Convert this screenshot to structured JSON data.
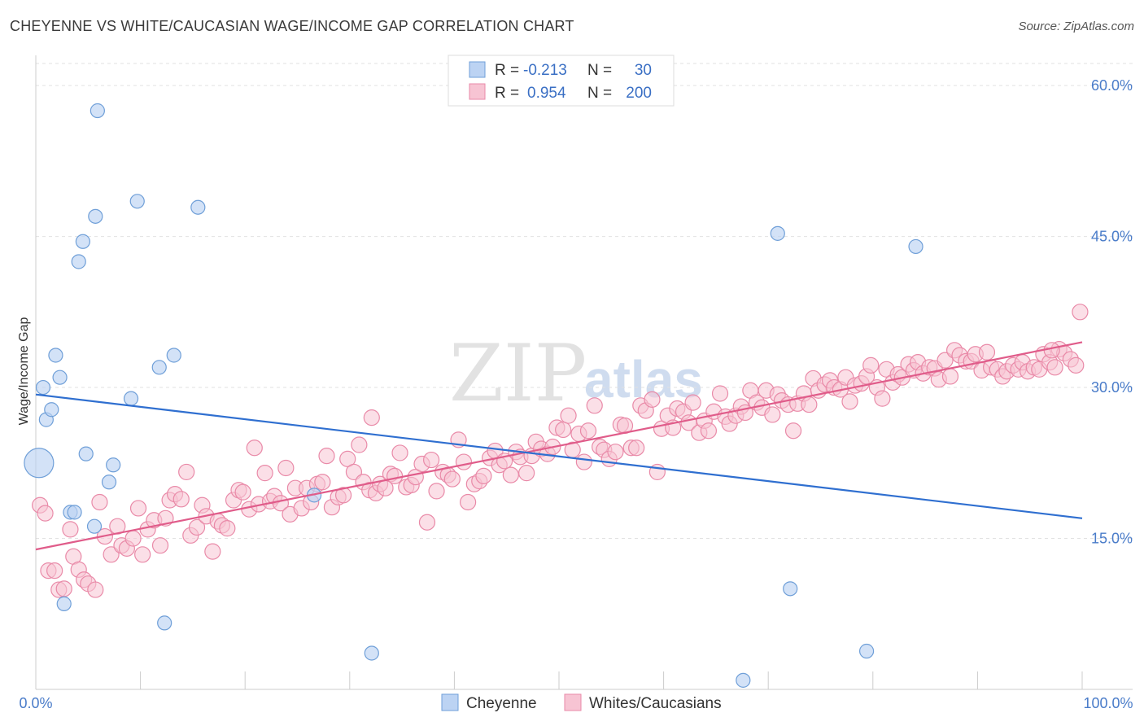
{
  "header": {
    "title": "CHEYENNE VS WHITE/CAUCASIAN WAGE/INCOME GAP CORRELATION CHART",
    "source": "Source: ZipAtlas.com"
  },
  "watermark": {
    "zip": "ZIP",
    "atlas": "atlas"
  },
  "colors": {
    "cheyenne_fill": "#bcd3f3",
    "cheyenne_stroke": "#6f9fd8",
    "cheyenne_line": "#2f6fd0",
    "white_fill": "#f7c4d3",
    "white_stroke": "#e98aa8",
    "white_line": "#e05c8a",
    "tick_text": "#4a7cc9"
  },
  "legend": {
    "rows": [
      {
        "r_label": "R =",
        "r_value": "-0.213",
        "n_label": "N =",
        "n_value": "30"
      },
      {
        "r_label": "R =",
        "r_value": "0.954",
        "n_label": "N =",
        "n_value": "200"
      }
    ]
  },
  "bottom_legend": [
    "Cheyenne",
    "Whites/Caucasians"
  ],
  "chart_data": {
    "type": "scatter",
    "title": "CHEYENNE VS WHITE/CAUCASIAN WAGE/INCOME GAP CORRELATION CHART",
    "xlabel": "",
    "ylabel": "Wage/Income Gap",
    "xlim": [
      0,
      100
    ],
    "ylim": [
      0,
      63
    ],
    "x_tick_labels": [
      "0.0%",
      "100.0%"
    ],
    "y_ticks": [
      15,
      30,
      45,
      60
    ],
    "y_tick_labels": [
      "15.0%",
      "30.0%",
      "45.0%",
      "60.0%"
    ],
    "series": [
      {
        "name": "Cheyenne",
        "r": -0.213,
        "n": 30,
        "trend": {
          "x": [
            0,
            100
          ],
          "y": [
            29.3,
            17.0
          ]
        },
        "points": [
          [
            0.3,
            22.5,
            1
          ],
          [
            0.7,
            30.0,
            0
          ],
          [
            1.0,
            26.8,
            0
          ],
          [
            1.5,
            27.8,
            0
          ],
          [
            1.9,
            33.2,
            0
          ],
          [
            2.3,
            31.0,
            0
          ],
          [
            2.7,
            8.5,
            0
          ],
          [
            3.3,
            17.6,
            0
          ],
          [
            3.7,
            17.6,
            0
          ],
          [
            4.1,
            42.5,
            0
          ],
          [
            4.5,
            44.5,
            0
          ],
          [
            4.8,
            23.4,
            0
          ],
          [
            5.6,
            16.2,
            0
          ],
          [
            5.9,
            57.5,
            0
          ],
          [
            5.7,
            47.0,
            0
          ],
          [
            7.0,
            20.6,
            0
          ],
          [
            7.4,
            22.3,
            0
          ],
          [
            9.1,
            28.9,
            0
          ],
          [
            9.7,
            48.5,
            0
          ],
          [
            11.8,
            32.0,
            0
          ],
          [
            12.3,
            6.6,
            0
          ],
          [
            13.2,
            33.2,
            0
          ],
          [
            15.5,
            47.9,
            0
          ],
          [
            26.6,
            19.3,
            0
          ],
          [
            32.1,
            3.6,
            0
          ],
          [
            70.9,
            45.3,
            0
          ],
          [
            72.1,
            10.0,
            0
          ],
          [
            79.4,
            3.8,
            0
          ],
          [
            84.1,
            44.0,
            0
          ],
          [
            67.6,
            0.9,
            0
          ]
        ]
      },
      {
        "name": "Whites/Caucasians",
        "r": 0.954,
        "n": 200,
        "trend": {
          "x": [
            0,
            100
          ],
          "y": [
            13.9,
            34.5
          ]
        },
        "points": [
          [
            0.4,
            18.3
          ],
          [
            0.9,
            17.5
          ],
          [
            1.2,
            11.8
          ],
          [
            1.8,
            11.8
          ],
          [
            2.2,
            9.9
          ],
          [
            2.7,
            10.0
          ],
          [
            3.3,
            15.9
          ],
          [
            3.6,
            13.2
          ],
          [
            4.1,
            11.9
          ],
          [
            4.6,
            10.9
          ],
          [
            5.0,
            10.5
          ],
          [
            5.7,
            9.9
          ],
          [
            6.1,
            18.6
          ],
          [
            6.6,
            15.2
          ],
          [
            7.2,
            13.4
          ],
          [
            7.8,
            16.2
          ],
          [
            8.2,
            14.3
          ],
          [
            8.7,
            14.0
          ],
          [
            9.3,
            15.0
          ],
          [
            9.8,
            18.0
          ],
          [
            10.2,
            13.4
          ],
          [
            10.7,
            15.9
          ],
          [
            11.3,
            16.8
          ],
          [
            11.9,
            14.3
          ],
          [
            12.4,
            17.0
          ],
          [
            12.8,
            18.8
          ],
          [
            13.3,
            19.4
          ],
          [
            13.9,
            18.9
          ],
          [
            14.4,
            21.6
          ],
          [
            14.8,
            15.3
          ],
          [
            15.4,
            16.1
          ],
          [
            15.9,
            18.3
          ],
          [
            16.3,
            17.2
          ],
          [
            16.9,
            13.7
          ],
          [
            17.4,
            16.7
          ],
          [
            17.8,
            16.3
          ],
          [
            18.3,
            16.0
          ],
          [
            18.9,
            18.8
          ],
          [
            19.4,
            19.8
          ],
          [
            19.8,
            19.6
          ],
          [
            20.4,
            17.9
          ],
          [
            20.9,
            24.0
          ],
          [
            21.3,
            18.4
          ],
          [
            21.9,
            21.5
          ],
          [
            22.4,
            18.7
          ],
          [
            22.8,
            19.2
          ],
          [
            23.4,
            18.5
          ],
          [
            23.9,
            22.0
          ],
          [
            24.3,
            17.4
          ],
          [
            24.8,
            20.0
          ],
          [
            25.4,
            18.0
          ],
          [
            25.9,
            20.0
          ],
          [
            26.3,
            18.6
          ],
          [
            26.9,
            20.4
          ],
          [
            27.4,
            20.6
          ],
          [
            27.8,
            23.2
          ],
          [
            28.3,
            18.1
          ],
          [
            28.9,
            19.1
          ],
          [
            29.4,
            19.3
          ],
          [
            29.8,
            22.9
          ],
          [
            30.4,
            21.6
          ],
          [
            30.9,
            24.3
          ],
          [
            31.3,
            20.6
          ],
          [
            31.9,
            19.8
          ],
          [
            32.1,
            27.0
          ],
          [
            32.5,
            19.5
          ],
          [
            32.9,
            20.4
          ],
          [
            33.4,
            20.0
          ],
          [
            33.9,
            21.4
          ],
          [
            34.3,
            21.2
          ],
          [
            34.8,
            23.5
          ],
          [
            35.4,
            20.1
          ],
          [
            35.9,
            20.3
          ],
          [
            36.3,
            21.1
          ],
          [
            36.9,
            22.4
          ],
          [
            37.4,
            16.6
          ],
          [
            37.8,
            22.8
          ],
          [
            38.3,
            19.7
          ],
          [
            38.9,
            21.6
          ],
          [
            39.4,
            21.3
          ],
          [
            39.8,
            20.9
          ],
          [
            40.4,
            24.8
          ],
          [
            40.9,
            22.6
          ],
          [
            41.3,
            18.6
          ],
          [
            41.9,
            20.4
          ],
          [
            42.4,
            20.7
          ],
          [
            42.8,
            21.2
          ],
          [
            43.4,
            23.0
          ],
          [
            43.9,
            23.7
          ],
          [
            44.3,
            22.3
          ],
          [
            44.8,
            22.7
          ],
          [
            45.4,
            21.3
          ],
          [
            45.9,
            23.6
          ],
          [
            46.3,
            23.1
          ],
          [
            46.9,
            21.5
          ],
          [
            47.4,
            23.2
          ],
          [
            47.8,
            24.6
          ],
          [
            48.3,
            23.9
          ],
          [
            48.9,
            23.4
          ],
          [
            49.4,
            24.1
          ],
          [
            49.8,
            26.0
          ],
          [
            50.4,
            25.8
          ],
          [
            50.9,
            27.2
          ],
          [
            51.3,
            23.8
          ],
          [
            51.9,
            25.4
          ],
          [
            52.4,
            22.6
          ],
          [
            52.8,
            25.7
          ],
          [
            53.4,
            28.2
          ],
          [
            53.9,
            24.1
          ],
          [
            54.3,
            23.8
          ],
          [
            54.8,
            22.9
          ],
          [
            55.4,
            23.6
          ],
          [
            55.9,
            26.3
          ],
          [
            56.3,
            26.2
          ],
          [
            56.9,
            24.0
          ],
          [
            57.4,
            24.0
          ],
          [
            57.8,
            28.2
          ],
          [
            58.3,
            27.7
          ],
          [
            58.9,
            28.8
          ],
          [
            59.4,
            21.6
          ],
          [
            59.8,
            25.9
          ],
          [
            60.4,
            27.2
          ],
          [
            60.9,
            26.0
          ],
          [
            61.3,
            27.9
          ],
          [
            61.9,
            27.6
          ],
          [
            62.4,
            26.5
          ],
          [
            62.8,
            28.5
          ],
          [
            63.4,
            25.5
          ],
          [
            63.9,
            26.7
          ],
          [
            64.3,
            25.7
          ],
          [
            64.8,
            27.6
          ],
          [
            65.4,
            29.4
          ],
          [
            65.9,
            27.1
          ],
          [
            66.3,
            26.4
          ],
          [
            66.9,
            27.2
          ],
          [
            67.4,
            28.1
          ],
          [
            67.8,
            27.5
          ],
          [
            68.3,
            29.7
          ],
          [
            68.9,
            28.5
          ],
          [
            69.4,
            28.0
          ],
          [
            69.8,
            29.7
          ],
          [
            70.4,
            27.3
          ],
          [
            70.9,
            29.3
          ],
          [
            71.3,
            28.7
          ],
          [
            71.9,
            28.3
          ],
          [
            72.4,
            25.7
          ],
          [
            72.8,
            28.4
          ],
          [
            73.4,
            29.4
          ],
          [
            73.9,
            28.3
          ],
          [
            74.3,
            30.9
          ],
          [
            74.8,
            29.7
          ],
          [
            75.4,
            30.3
          ],
          [
            75.9,
            30.7
          ],
          [
            76.3,
            30.0
          ],
          [
            76.9,
            29.8
          ],
          [
            77.4,
            31.0
          ],
          [
            77.8,
            28.6
          ],
          [
            78.3,
            30.2
          ],
          [
            78.9,
            30.4
          ],
          [
            79.4,
            31.1
          ],
          [
            79.8,
            32.2
          ],
          [
            80.4,
            30.0
          ],
          [
            80.9,
            28.9
          ],
          [
            81.3,
            31.8
          ],
          [
            81.9,
            30.5
          ],
          [
            82.4,
            31.3
          ],
          [
            82.8,
            31.0
          ],
          [
            83.4,
            32.3
          ],
          [
            83.9,
            31.7
          ],
          [
            84.3,
            32.5
          ],
          [
            84.8,
            31.4
          ],
          [
            85.4,
            32.0
          ],
          [
            85.9,
            31.9
          ],
          [
            86.3,
            30.8
          ],
          [
            86.9,
            32.7
          ],
          [
            87.4,
            31.1
          ],
          [
            87.8,
            33.7
          ],
          [
            88.3,
            33.2
          ],
          [
            88.9,
            32.6
          ],
          [
            89.4,
            32.6
          ],
          [
            89.8,
            33.3
          ],
          [
            90.4,
            31.7
          ],
          [
            90.9,
            33.5
          ],
          [
            91.3,
            32.0
          ],
          [
            91.9,
            31.8
          ],
          [
            92.4,
            31.1
          ],
          [
            92.8,
            31.6
          ],
          [
            93.4,
            32.2
          ],
          [
            93.9,
            31.8
          ],
          [
            94.3,
            32.5
          ],
          [
            94.8,
            31.6
          ],
          [
            95.4,
            32.0
          ],
          [
            95.9,
            31.8
          ],
          [
            96.3,
            33.3
          ],
          [
            96.9,
            32.5
          ],
          [
            97.4,
            32.0
          ],
          [
            97.8,
            33.8
          ],
          [
            98.3,
            33.4
          ],
          [
            98.9,
            32.8
          ],
          [
            99.4,
            32.2
          ],
          [
            99.8,
            37.5
          ],
          [
            97.1,
            33.7
          ]
        ]
      }
    ]
  }
}
